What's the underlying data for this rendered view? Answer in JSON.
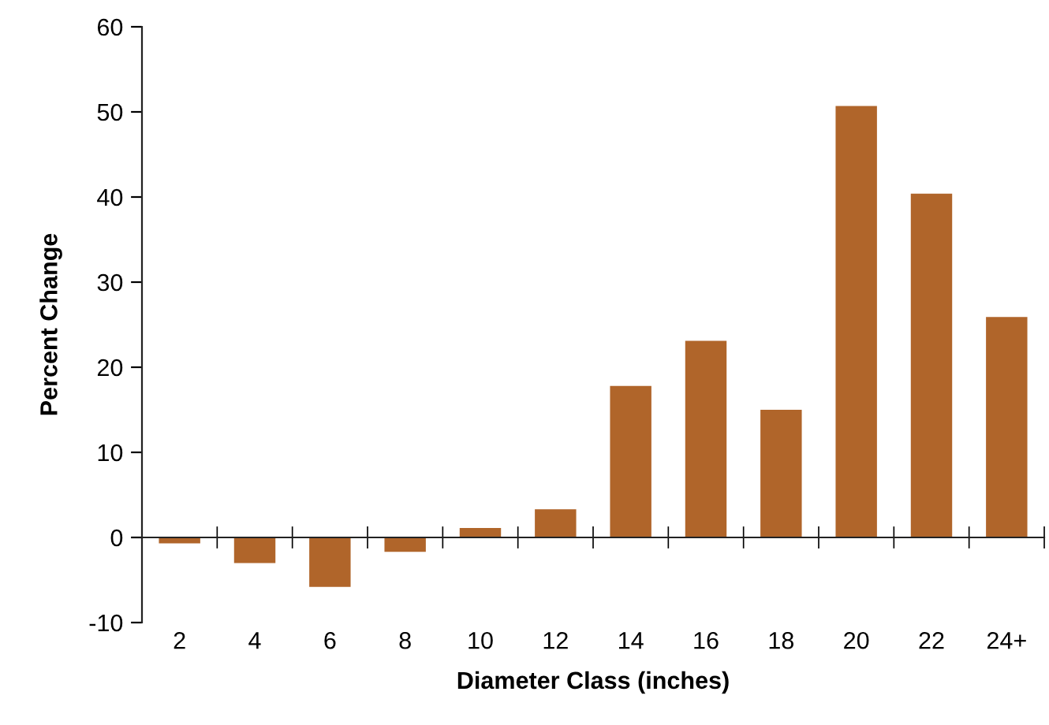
{
  "chart_data": {
    "type": "bar",
    "xlabel": "Diameter Class (inches)",
    "ylabel": "Percent Change",
    "categories": [
      "2",
      "4",
      "6",
      "8",
      "10",
      "12",
      "14",
      "16",
      "18",
      "20",
      "22",
      "24+"
    ],
    "values": [
      -0.7,
      -3,
      -5.8,
      -1.7,
      1.1,
      3.3,
      17.8,
      23.1,
      15,
      50.7,
      40.4,
      25.9
    ],
    "color": "#b0652a",
    "ylim": [
      -10,
      60
    ],
    "yticks": [
      -10,
      0,
      10,
      20,
      30,
      40,
      50,
      60
    ],
    "legend": false
  }
}
